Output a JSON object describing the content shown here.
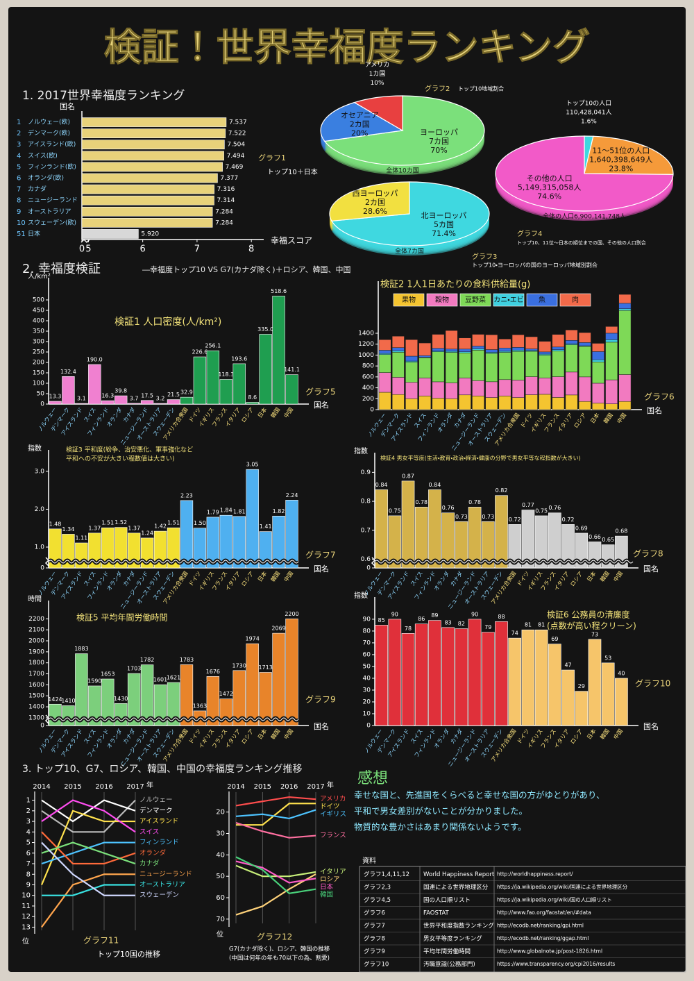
{
  "title": "検証！世界幸福度ランキング",
  "headings": [
    "1. 2017世界幸福度ランキング",
    "2. 幸福度検証",
    "3. トップ10、G7、ロシア、韓国、中国の幸福度ランキング推移"
  ],
  "versus": "―幸福度トップ10 VS G7(カナダ除く)＋ロシア、韓国、中国",
  "countries": [
    "ノルウェー",
    "デンマーク",
    "アイスランド",
    "スイス",
    "フィンランド",
    "オランダ",
    "カナダ",
    "ニュージーランド",
    "オーストラリア",
    "スウェーデン",
    "アメリカ合衆国",
    "ドイツ",
    "イギリス",
    "フランス",
    "イタリア",
    "ロシア",
    "日本",
    "韓国",
    "中国"
  ],
  "impressions": {
    "title": "感想",
    "lines": [
      "幸せな国と、先進国をくらべると幸せな国の方がゆとりがあり、",
      "平和で男女差別がないことが分かりました。",
      "物質的な豊かさはあまり関係ないようです。"
    ]
  },
  "sources": {
    "title": "資料",
    "rows": [
      [
        "グラフ1,4,11,12",
        "World Happiness Report",
        "http://worldhappiness.report/"
      ],
      [
        "グラフ2,3",
        "国連による世界地理区分",
        "https://ja.wikipedia.org/wiki/国連による世界地理区分"
      ],
      [
        "グラフ4,5",
        "国の人口順リスト",
        "https://ja.wikipedia.org/wiki/国の人口順リスト"
      ],
      [
        "グラフ6",
        "FAOSTAT",
        "http://www.fao.org/faostat/en/#data"
      ],
      [
        "グラフ7",
        "世界平和度指数ランキング",
        "http://ecodb.net/ranking/gpi.html"
      ],
      [
        "グラフ8",
        "男女平等度ランキング",
        "http://ecodb.net/ranking/ggap.html"
      ],
      [
        "グラフ9",
        "平均年間労働時間",
        "http://www.globalnote.jp/post-1826.html"
      ],
      [
        "グラフ10",
        "汚職意識(公務部門)",
        "https://www.transparency.org/cpi2016/results"
      ]
    ]
  },
  "chart_data": [
    {
      "type": "hbar",
      "label": "グラフ1",
      "title": "トップ10＋日本",
      "ylabel": "国名",
      "xlabel": "幸福スコア",
      "ranks": [
        1,
        2,
        3,
        4,
        5,
        6,
        7,
        8,
        9,
        10,
        51
      ],
      "categories": [
        "ノルウェー(欧)",
        "デンマーク(欧)",
        "アイスランド(欧)",
        "スイス(欧)",
        "フィンランド(欧)",
        "オランダ(欧)",
        "カナダ",
        "ニュージーランド",
        "オーストラリア",
        "スウェーデン(欧)",
        "日本"
      ],
      "values": [
        7.537,
        7.522,
        7.504,
        7.494,
        7.469,
        7.377,
        7.316,
        7.314,
        7.284,
        7.284,
        5.92
      ],
      "value_labels": [
        "7.537",
        "7.522",
        "7.504",
        "7.494",
        "7.469",
        "7.377",
        "7.316",
        "7.314",
        "7.284",
        "7.284",
        "5.920"
      ],
      "colors": [
        "#e8d27a",
        "#e8d27a",
        "#e8d27a",
        "#e8d27a",
        "#e8d27a",
        "#e8d27a",
        "#e8d27a",
        "#e8d27a",
        "#e8d27a",
        "#e8d27a",
        "#d8d8d8"
      ],
      "xlim": [
        4.88,
        8.1
      ],
      "xticks": [
        0,
        5,
        6,
        7,
        8
      ],
      "axis_break": true
    },
    {
      "type": "pie",
      "label": "グラフ2",
      "title": "トップ10地域割合",
      "total": "全体10カ国",
      "categories": [
        "ヨーロッパ",
        "オセアニア",
        "アメリカ"
      ],
      "sublabels": [
        "7カ国",
        "2カ国",
        "1カ国"
      ],
      "values": [
        70,
        20,
        10
      ],
      "value_labels": [
        "70%",
        "20%",
        "10%"
      ],
      "colors": [
        "#7be07b",
        "#3a7fe0",
        "#e84040"
      ]
    },
    {
      "type": "pie",
      "label": "グラフ3",
      "title": "トップ10・ヨーロッパの国のヨーロッパ地域別割合",
      "total": "全体7カ国",
      "categories": [
        "北ヨーロッパ",
        "西ヨーロッパ"
      ],
      "sublabels": [
        "5カ国",
        "2カ国"
      ],
      "values": [
        71.4,
        28.6
      ],
      "value_labels": [
        "71.4%",
        "28.6%"
      ],
      "colors": [
        "#3fd8e0",
        "#f2e040"
      ]
    },
    {
      "type": "pie",
      "label": "グラフ4",
      "title": "トップ10、11位～日本の順位までの国、その他の人口割合",
      "total": "全体の人口6,900,141,748人",
      "categories": [
        "トップ10の人口",
        "11～51位の人口",
        "その他の人口"
      ],
      "sublabels": [
        "110,428,041人",
        "1,640,398,649人",
        "5,149,315,058人"
      ],
      "values": [
        1.6,
        23.8,
        74.6
      ],
      "value_labels": [
        "1.6%",
        "23.8%",
        "74.6%"
      ],
      "colors": [
        "#3fd8e0",
        "#f59a3a",
        "#f25ac8"
      ]
    },
    {
      "type": "bar",
      "label": "グラフ5",
      "title": "検証1 人口密度(人/km²)",
      "ylabel": "人/km²",
      "xlabel": "国名",
      "values": [
        13.3,
        132.4,
        3.1,
        190,
        16.3,
        39.8,
        3.7,
        17.5,
        3.2,
        21.5,
        32.9,
        226.6,
        256.1,
        118.3,
        193.6,
        8.6,
        335,
        518.6,
        141.1
      ],
      "value_labels": [
        "13.3",
        "132.4",
        "3.1",
        "190.0",
        "16.3",
        "39.8",
        "3.7",
        "17.5",
        "3.2",
        "21.5",
        "32.9",
        "226.6",
        "256.1",
        "118.3",
        "193.6",
        "8.6",
        "335.0",
        "518.6",
        "141.1"
      ],
      "colors": [
        "#f080d0",
        "#f080d0",
        "#f080d0",
        "#f080d0",
        "#f080d0",
        "#f080d0",
        "#f080d0",
        "#f080d0",
        "#f080d0",
        "#f080d0",
        "#1f9e50",
        "#1f9e50",
        "#1f9e50",
        "#1f9e50",
        "#1f9e50",
        "#1f9e50",
        "#1f9e50",
        "#1f9e50",
        "#1f9e50"
      ],
      "ylim": [
        0,
        540
      ],
      "yticks": [
        0,
        50,
        100,
        150,
        200,
        250,
        300,
        350,
        400,
        450,
        500
      ]
    },
    {
      "type": "stacked_bar",
      "label": "グラフ6",
      "title": "検証2 1人1日あたりの食料供給量(g)",
      "xlabel": "国名",
      "series": [
        {
          "name": "果物",
          "color": "#f4c430",
          "values": [
            318,
            277,
            200,
            250,
            210,
            200,
            270,
            250,
            221,
            250,
            221,
            273,
            281,
            223,
            269,
            150,
            117,
            106,
            150
          ]
        },
        {
          "name": "穀物",
          "color": "#f27ac0",
          "values": [
            361,
            315,
            300,
            330,
            300,
            290,
            310,
            280,
            290,
            300,
            320,
            330,
            300,
            380,
            420,
            450,
            367,
            440,
            493
          ]
        },
        {
          "name": "豆野菜",
          "color": "#7ed957",
          "values": [
            330,
            460,
            370,
            370,
            550,
            560,
            460,
            560,
            520,
            500,
            525,
            466,
            417,
            470,
            500,
            560,
            390,
            690,
            1176
          ]
        },
        {
          "name": "カニ・エビ",
          "color": "#3fd0e0",
          "values": [
            20,
            25,
            20,
            10,
            15,
            20,
            20,
            25,
            20,
            20,
            25,
            15,
            20,
            25,
            20,
            10,
            40,
            45,
            30
          ]
        },
        {
          "name": "魚",
          "color": "#3a6fe0",
          "values": [
            60,
            60,
            90,
            30,
            50,
            40,
            50,
            50,
            50,
            60,
            50,
            30,
            40,
            50,
            60,
            60,
            150,
            120,
            100
          ]
        },
        {
          "name": "肉",
          "color": "#f26a4a",
          "values": [
            193,
            209,
            303,
            231,
            255,
            340,
            204,
            215,
            272,
            164,
            232,
            222,
            194,
            230,
            191,
            182,
            151,
            122,
            163
          ]
        }
      ],
      "ylim": [
        0,
        2100
      ],
      "yticks": [
        0,
        200,
        400,
        600,
        800,
        1000,
        1200,
        1400
      ]
    },
    {
      "type": "bar",
      "label": "グラフ7",
      "title": [
        "検証3 平和度(紛争、治安悪化、軍事強化など",
        "平和への不安が大きい程数値は大きい)"
      ],
      "ylabel": "指数",
      "xlabel": "国名",
      "values": [
        1.48,
        1.34,
        1.11,
        1.37,
        1.51,
        1.52,
        1.37,
        1.24,
        1.42,
        1.51,
        2.23,
        1.5,
        1.79,
        1.84,
        1.81,
        3.05,
        1.41,
        1.82,
        2.24
      ],
      "value_labels": [
        "1.48",
        "1.34",
        "1.11",
        "1.37",
        "1.51",
        "1.52",
        "1.37",
        "1.24",
        "1.42",
        "1.51",
        "2.23",
        "1.50",
        "1.79",
        "1.84",
        "1.81",
        "3.05",
        "1.41",
        "1.82",
        "2.24"
      ],
      "colors": [
        "#f2e030",
        "#f2e030",
        "#f2e030",
        "#f2e030",
        "#f2e030",
        "#f2e030",
        "#f2e030",
        "#f2e030",
        "#f2e030",
        "#f2e030",
        "#4fb0f0",
        "#4fb0f0",
        "#4fb0f0",
        "#4fb0f0",
        "#4fb0f0",
        "#4fb0f0",
        "#4fb0f0",
        "#4fb0f0",
        "#4fb0f0"
      ],
      "ylim": [
        0.45,
        3.2
      ],
      "yticks": [
        0,
        {
          "value": 1,
          "label": "1.0"
        },
        {
          "value": 2,
          "label": "2.0"
        },
        {
          "value": 3,
          "label": "3.0"
        }
      ],
      "axis_break": true
    },
    {
      "type": "bar",
      "label": "グラフ8",
      "title": "検証4 男女平等度(生活・教育・政治・経済・健康の分野で男女平等な程指数が大きい)",
      "ylabel": "指数",
      "xlabel": "国名",
      "values": [
        0.84,
        0.75,
        0.87,
        0.78,
        0.84,
        0.76,
        0.73,
        0.78,
        0.73,
        0.82,
        0.72,
        0.77,
        0.75,
        0.76,
        0.72,
        0.69,
        0.66,
        0.65,
        0.68
      ],
      "colors": [
        "#d4b24a",
        "#d4b24a",
        "#d4b24a",
        "#d4b24a",
        "#d4b24a",
        "#d4b24a",
        "#d4b24a",
        "#d4b24a",
        "#d4b24a",
        "#d4b24a",
        "#cfcfcf",
        "#cfcfcf",
        "#cfcfcf",
        "#cfcfcf",
        "#cfcfcf",
        "#cfcfcf",
        "#cfcfcf",
        "#cfcfcf",
        "#cfcfcf"
      ],
      "ylim": [
        0.57,
        0.92
      ],
      "yticks": [
        0,
        0.6,
        0.7,
        0.8,
        0.9
      ],
      "axis_break": true
    },
    {
      "type": "bar",
      "label": "グラフ9",
      "title": "検証5 平均年間労働時間",
      "ylabel": "時間",
      "xlabel": "国名",
      "values": [
        1424,
        1410,
        1883,
        1590,
        1653,
        1430,
        1703,
        1782,
        1601,
        1621,
        1783,
        1363,
        1676,
        1472,
        1730,
        1974,
        1713,
        2069,
        2200
      ],
      "colors": [
        "#7ccf7c",
        "#7ccf7c",
        "#7ccf7c",
        "#7ccf7c",
        "#7ccf7c",
        "#7ccf7c",
        "#7ccf7c",
        "#7ccf7c",
        "#7ccf7c",
        "#7ccf7c",
        "#e8842a",
        "#e8842a",
        "#e8842a",
        "#e8842a",
        "#e8842a",
        "#e8842a",
        "#e8842a",
        "#e8842a",
        "#e8842a"
      ],
      "ylim": [
        1230,
        2240
      ],
      "yticks": [
        0,
        1300,
        1400,
        1500,
        1600,
        1700,
        1800,
        1900,
        2000,
        2100,
        2200
      ],
      "axis_break": true
    },
    {
      "type": "bar",
      "label": "グラフ10",
      "title": [
        "検証6 公務員の清廉度",
        "(点数が高い程クリーン)"
      ],
      "ylabel": "指数",
      "xlabel": "国名",
      "values": [
        85,
        90,
        78,
        86,
        89,
        83,
        82,
        90,
        79,
        88,
        74,
        81,
        81,
        69,
        47,
        29,
        73,
        53,
        40
      ],
      "colors": [
        "#e0303a",
        "#e0303a",
        "#e0303a",
        "#e0303a",
        "#e0303a",
        "#e0303a",
        "#e0303a",
        "#e0303a",
        "#e0303a",
        "#e0303a",
        "#f6c56a",
        "#f6c56a",
        "#f6c56a",
        "#f6c56a",
        "#f6c56a",
        "#f6c56a",
        "#f6c56a",
        "#f6c56a",
        "#f6c56a"
      ],
      "ylim": [
        0,
        97
      ],
      "yticks": [
        0,
        10,
        20,
        30,
        40,
        50,
        60,
        70,
        80,
        90
      ]
    },
    {
      "type": "line",
      "label": "グラフ11",
      "title": "トップ10国の推移",
      "ylabel": "位",
      "xlabel": "年",
      "categories": [
        "2014",
        "2015",
        "2016",
        "2017"
      ],
      "ylim": [
        13.3,
        0.5
      ],
      "yticks": [
        1,
        2,
        3,
        4,
        5,
        6,
        7,
        8,
        9,
        10,
        11,
        12,
        13
      ],
      "series": [
        {
          "name": "ノルウェー",
          "color": "#bbbbbb",
          "values": [
            2,
            4,
            4,
            1
          ]
        },
        {
          "name": "デンマーク",
          "color": "#ffffff",
          "values": [
            1,
            3,
            1,
            2
          ]
        },
        {
          "name": "アイスランド",
          "color": "#ffe14d",
          "values": [
            9,
            2,
            3,
            3
          ]
        },
        {
          "name": "スイス",
          "color": "#ff4df0",
          "values": [
            3,
            1,
            2,
            4
          ]
        },
        {
          "name": "フィンランド",
          "color": "#4dc3ff",
          "values": [
            7,
            6,
            5,
            5
          ]
        },
        {
          "name": "オランダ",
          "color": "#ff6a3a",
          "values": [
            4,
            7,
            7,
            6
          ]
        },
        {
          "name": "カナダ",
          "color": "#7be07b",
          "values": [
            6,
            5,
            6,
            7
          ]
        },
        {
          "name": "ニュージーランド",
          "color": "#ffa54d",
          "values": [
            13,
            9,
            8,
            8
          ]
        },
        {
          "name": "オーストラリア",
          "color": "#38e0e0",
          "values": [
            10,
            10,
            9,
            9
          ]
        },
        {
          "name": "スウェーデン",
          "color": "#d0d8ff",
          "values": [
            5,
            8,
            10,
            10
          ]
        }
      ]
    },
    {
      "type": "line",
      "label": "グラフ12",
      "note": [
        "G7(カナダ除く)、ロシア、韓国の推移",
        "(中国は何年の年も70以下の為、割愛)"
      ],
      "ylabel": "位",
      "xlabel": "年",
      "categories": [
        "2014",
        "2015",
        "2016",
        "2017"
      ],
      "ylim": [
        72,
        12
      ],
      "yticks": [
        20,
        30,
        40,
        50,
        60,
        70
      ],
      "series": [
        {
          "name": "アメリカ",
          "color": "#ff4d4d",
          "values": [
            17,
            15,
            13,
            14
          ]
        },
        {
          "name": "ドイツ",
          "color": "#ffe14d",
          "values": [
            26,
            26,
            16,
            16
          ]
        },
        {
          "name": "イギリス",
          "color": "#4dc3ff",
          "values": [
            22,
            21,
            23,
            19
          ]
        },
        {
          "name": "フランス",
          "color": "#ff6fa0",
          "values": [
            25,
            29,
            32,
            31
          ]
        },
        {
          "name": "イタリア",
          "color": "#c8f07a",
          "values": [
            45,
            50,
            50,
            48
          ]
        },
        {
          "name": "ロシア",
          "color": "#ffd27a",
          "values": [
            68,
            64,
            56,
            49
          ]
        },
        {
          "name": "日本",
          "color": "#ff5cc8",
          "values": [
            43,
            46,
            53,
            51
          ]
        },
        {
          "name": "韓国",
          "color": "#49d07a",
          "values": [
            41,
            47,
            58,
            56
          ]
        }
      ]
    }
  ]
}
